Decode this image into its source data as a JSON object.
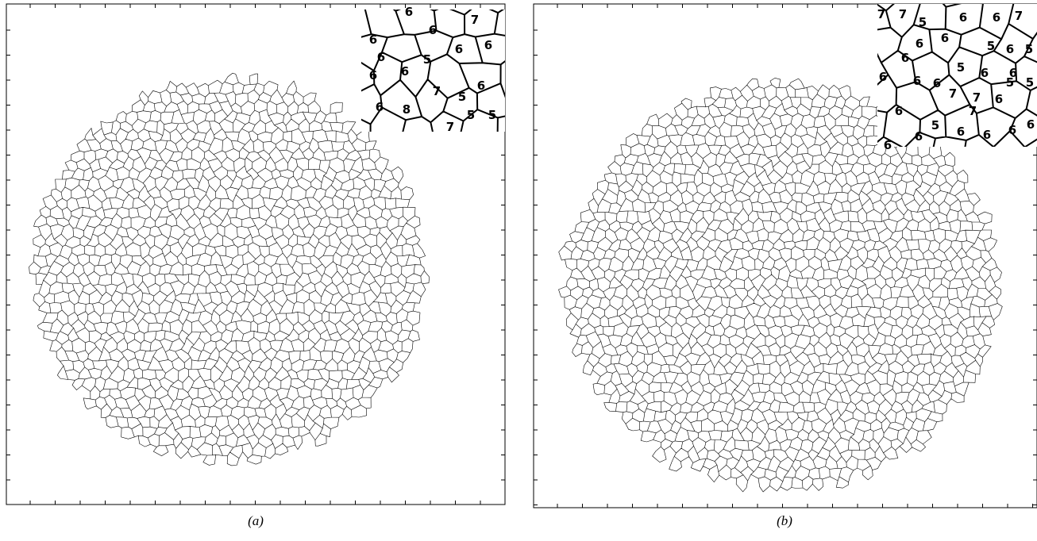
{
  "panels": [
    {
      "caption": "(a)",
      "inset_labels": [
        "6",
        "6",
        "7",
        "6",
        "6",
        "5",
        "6",
        "6",
        "6",
        "6",
        "7",
        "5",
        "6",
        "6",
        "8",
        "5",
        "5",
        "7"
      ]
    },
    {
      "caption": "(b)",
      "inset_labels": [
        "7",
        "7",
        "5",
        "6",
        "6",
        "7",
        "6",
        "6",
        "5",
        "6",
        "5",
        "6",
        "5",
        "6",
        "6",
        "6",
        "6",
        "6",
        "7",
        "5",
        "5",
        "6",
        "7",
        "7",
        "6",
        "6",
        "5",
        "6",
        "6",
        "6",
        "6",
        "6"
      ]
    }
  ]
}
